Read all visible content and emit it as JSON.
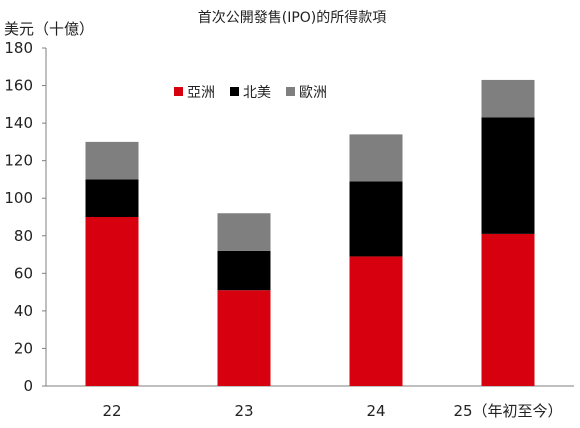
{
  "colors": {
    "asia": "#d7000f",
    "north_america": "#000000",
    "europe": "#7f7f7f",
    "axis": "#7f7f7f"
  },
  "chart_data": {
    "type": "bar",
    "stacked": true,
    "title": "首次公開發售(IPO)的所得款項",
    "ylabel": "美元（十億）",
    "xlabel": "",
    "categories": [
      "22",
      "23",
      "24",
      "25（年初至今）"
    ],
    "ylim": [
      0,
      180
    ],
    "yticks": [
      0,
      20,
      40,
      60,
      80,
      100,
      120,
      140,
      160,
      180
    ],
    "series": [
      {
        "name": "亞洲",
        "color": "#d7000f",
        "values": [
          90,
          51,
          69,
          81
        ]
      },
      {
        "name": "北美",
        "color": "#000000",
        "values": [
          20,
          21,
          40,
          62
        ]
      },
      {
        "name": "歐洲",
        "color": "#7f7f7f",
        "values": [
          20,
          20,
          25,
          20
        ]
      }
    ],
    "grid": false,
    "legend_position": "top-left"
  }
}
